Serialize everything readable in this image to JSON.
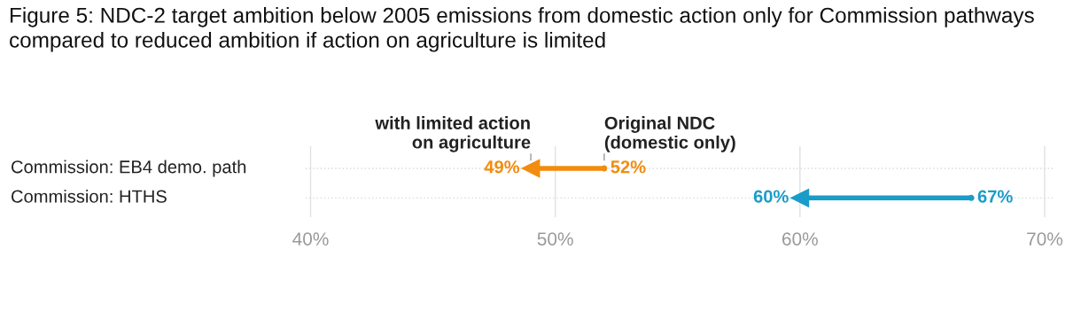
{
  "chart_data": {
    "type": "scatter",
    "orientation": "horizontal",
    "title": "Figure 5: NDC-2 target ambition below 2005 emissions from domestic action only for Commission pathways compared to reduced ambition if action on agriculture is limited",
    "categories": [
      "Commission: EB4 demo. path",
      "Commission: HTHS"
    ],
    "series": [
      {
        "name": "Original NDC\n(domestic only)",
        "colors": [
          "#f28c0f",
          "#1a9cc9"
        ],
        "values": [
          52,
          67
        ],
        "value_labels": [
          "52%",
          "67%"
        ],
        "marker": "circle"
      },
      {
        "name": "with limited action\non agriculture",
        "colors": [
          "#f28c0f",
          "#1a9cc9"
        ],
        "values": [
          49,
          60
        ],
        "value_labels": [
          "49%",
          "60%"
        ],
        "marker": "triangle"
      }
    ],
    "xlim": [
      39.8,
      70.4
    ],
    "xticks": [
      {
        "value": 40,
        "label": "40%"
      },
      {
        "value": 50,
        "label": "50%"
      },
      {
        "value": 60,
        "label": "60%"
      },
      {
        "value": 70,
        "label": "70%"
      }
    ],
    "grid": "x",
    "legend": false
  }
}
